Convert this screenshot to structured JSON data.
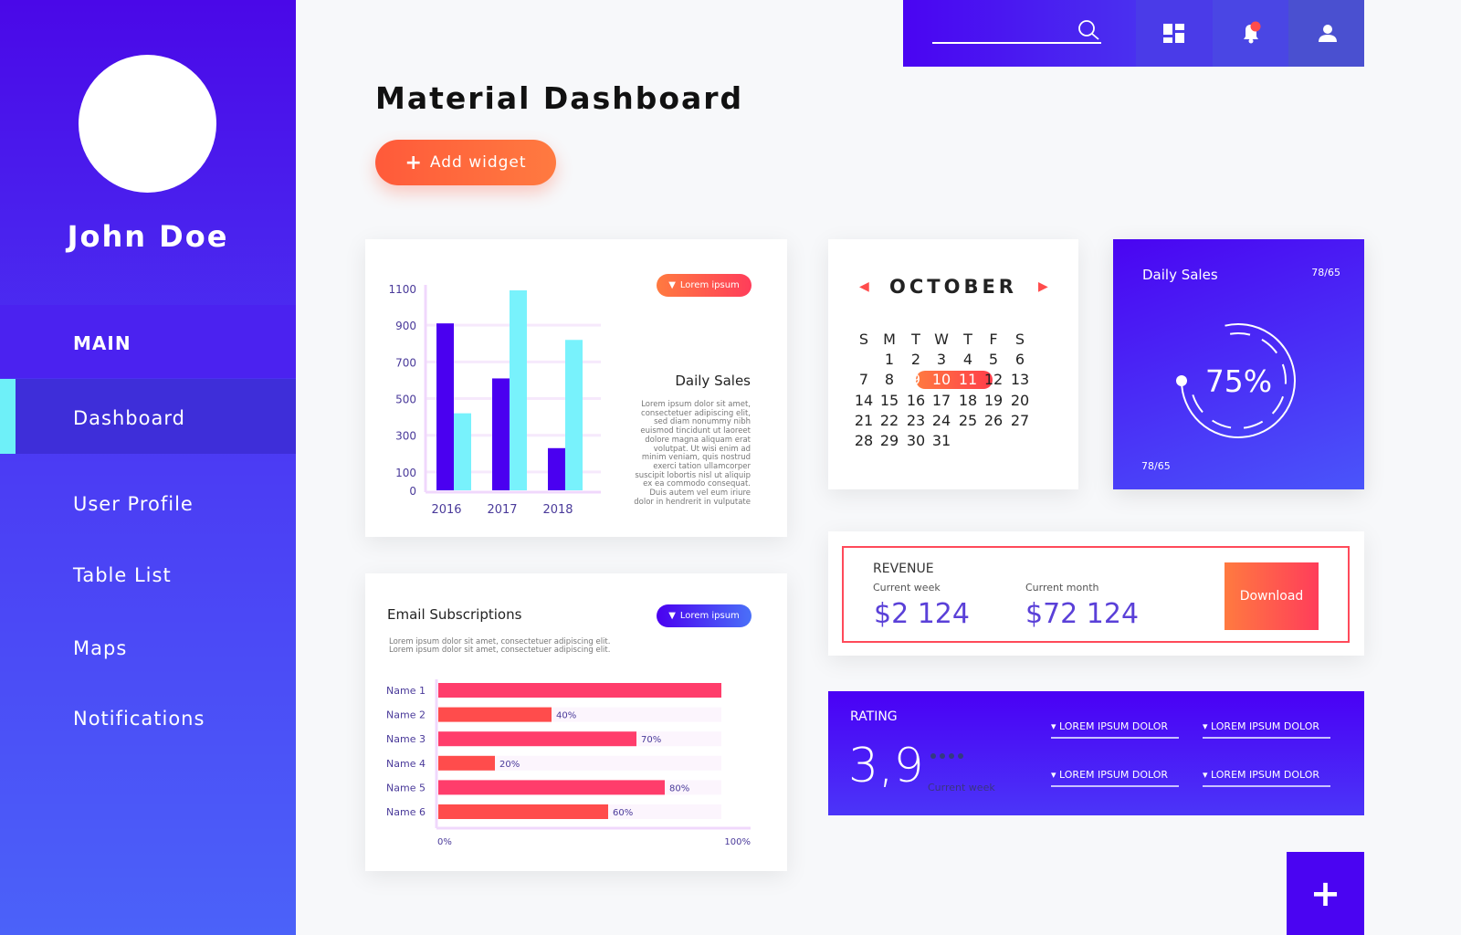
{
  "sidebar": {
    "user_name": "John Doe",
    "section": "MAIN",
    "items": [
      {
        "label": "Dashboard",
        "active": true
      },
      {
        "label": "User Profile"
      },
      {
        "label": "Table List"
      },
      {
        "label": "Maps"
      },
      {
        "label": "Notifications"
      }
    ],
    "accent": "#6ef0f8"
  },
  "topbar": {
    "search_placeholder": "",
    "icons": [
      "search-icon",
      "dashboard-grid-icon",
      "bell-icon",
      "user-icon"
    ],
    "notification_dot_color": "#ff4c4c"
  },
  "page": {
    "title": "Material Dashboard",
    "add_widget_label": "Add widget"
  },
  "sales_card": {
    "dropdown_label": "Lorem ipsum",
    "title": "Daily Sales",
    "text": "Lorem ipsum dolor sit amet, consectetuer adipiscing elit, sed diam nonummy nibh euismod tincidunt ut laoreet dolore magna aliquam erat volutpat. Ut wisi enim ad minim veniam, quis nostrud exerci tation ullamcorper suscipit lobortis nisl ut aliquip ex ea commodo consequat. Duis autem vel eum iriure dolor in hendrerit in vulputate"
  },
  "email_card": {
    "title": "Email Subscriptions",
    "dropdown_label": "Lorem ipsum",
    "text1": "Lorem ipsum dolor sit amet, consectetuer adipiscing elit.",
    "text2": "Lorem ipsum dolor sit amet, consectetuer adipiscing elit."
  },
  "chart_data": [
    {
      "type": "bar",
      "categories": [
        "2016",
        "2017",
        "2018"
      ],
      "series": [
        {
          "values": [
            910,
            610,
            230
          ],
          "color": "#4a00f0"
        },
        {
          "values": [
            420,
            1090,
            820
          ],
          "color": "#78f2fc"
        }
      ],
      "yticks": [
        0,
        100,
        300,
        500,
        700,
        900,
        1100
      ],
      "ylim": [
        0,
        1100
      ],
      "grid": true
    },
    {
      "type": "bar",
      "orientation": "horizontal",
      "categories": [
        "Name 1",
        "Name 2",
        "Name 3",
        "Name 4",
        "Name 5",
        "Name 6"
      ],
      "values": [
        100,
        40,
        70,
        20,
        80,
        60
      ],
      "value_labels": [
        "",
        "40%",
        "70%",
        "20%",
        "80%",
        "60%"
      ],
      "xtick_labels": [
        "0%",
        "100%"
      ],
      "xlim": [
        0,
        100
      ],
      "colors": [
        "#ff3d6b",
        "#ff4c4c"
      ]
    }
  ],
  "calendar": {
    "month": "OCTOBER",
    "weekdays": [
      "S",
      "M",
      "T",
      "W",
      "T",
      "F",
      "S"
    ],
    "first_weekday": 1,
    "days": 31,
    "selected": [
      9,
      10,
      11
    ]
  },
  "daily_sales": {
    "title": "Daily Sales",
    "top_value": "78/65",
    "bottom_value": "78/65",
    "percent_label": "75%",
    "percent": 75
  },
  "revenue": {
    "title": "REVENUE",
    "week_label": "Current week",
    "week_value": "$2 124",
    "month_label": "Current month",
    "month_value": "$72 124",
    "download_label": "Download"
  },
  "rating": {
    "title": "RATING",
    "value": "3,9",
    "sub": "Current week",
    "dropdowns": [
      "LOREM IPSUM DOLOR",
      "LOREM IPSUM DOLOR",
      "LOREM IPSUM DOLOR",
      "LOREM IPSUM DOLOR"
    ]
  },
  "fab": {
    "icon": "plus-icon"
  }
}
